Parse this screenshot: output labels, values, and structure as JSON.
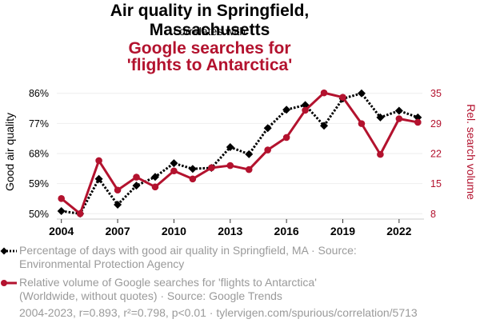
{
  "header": {
    "title": "Air quality in Springfield, Massachusetts",
    "subtitle": "correlates with",
    "title2": "Google searches for 'flights to Antarctica'"
  },
  "colors": {
    "series1": "#000000",
    "series2": "#b3122e",
    "grid": "#eeeeee",
    "axis": "#cccccc",
    "muted_text": "#9a9a9a"
  },
  "chart_data": {
    "type": "line",
    "title": "Air quality in Springfield, Massachusetts correlates with Google searches for 'flights to Antarctica'",
    "x": [
      2004,
      2005,
      2006,
      2007,
      2008,
      2009,
      2010,
      2011,
      2012,
      2013,
      2014,
      2015,
      2016,
      2017,
      2018,
      2019,
      2020,
      2021,
      2022,
      2023
    ],
    "xticks": [
      "2004",
      "2007",
      "2010",
      "2013",
      "2016",
      "2019",
      "2022"
    ],
    "xtick_values": [
      2004,
      2007,
      2010,
      2013,
      2016,
      2019,
      2022
    ],
    "xlim": [
      2004,
      2023
    ],
    "xlabel": "",
    "grid": true,
    "series": [
      {
        "name": "Percentage of days with good air quality in Springfield, MA",
        "axis": "left",
        "color": "#000000",
        "line_style": "dotted",
        "marker": "diamond",
        "values": [
          50.8,
          50.0,
          60.4,
          52.7,
          58.4,
          61.0,
          65.1,
          63.4,
          63.7,
          69.9,
          67.8,
          75.6,
          81.1,
          82.5,
          76.3,
          84.4,
          86.0,
          78.8,
          80.8,
          78.8
        ]
      },
      {
        "name": "Relative volume of Google searches for 'flights to Antarctica'",
        "axis": "right",
        "color": "#b3122e",
        "line_style": "solid",
        "marker": "circle",
        "values": [
          11.4,
          8.0,
          19.9,
          13.3,
          16.2,
          14.0,
          17.6,
          15.8,
          18.3,
          18.8,
          17.9,
          22.3,
          25.1,
          31.2,
          35.1,
          34.1,
          28.2,
          21.3,
          29.3,
          28.5
        ]
      }
    ],
    "y_left": {
      "label": "Good air quality",
      "ticks": [
        "50%",
        "59%",
        "68%",
        "77%",
        "86%"
      ],
      "ylim": [
        50,
        86
      ]
    },
    "y_right": {
      "label": "Rel. search volume",
      "ticks": [
        "8",
        "15",
        "22",
        "29",
        "35"
      ],
      "ylim": [
        8,
        35
      ]
    },
    "legend_position": "bottom"
  },
  "legend": [
    {
      "lines": [
        "Percentage of days with good air quality in Springfield, MA · Source:",
        "Environmental Protection Agency"
      ]
    },
    {
      "lines": [
        "Relative volume of Google searches for 'flights to Antarctica'",
        "(Worldwide, without quotes) · Source: Google Trends"
      ]
    }
  ],
  "footer": "2004-2023, r=0.893, r²=0.798, p<0.01 · tylervigen.com/spurious/correlation/5713"
}
